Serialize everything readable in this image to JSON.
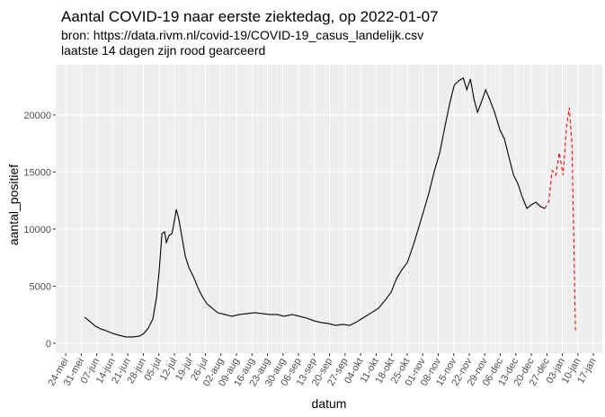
{
  "chart_data": {
    "type": "line",
    "title": "Aantal COVID-19 naar eerste ziektedag, op 2022-01-07",
    "subtitle": [
      "bron: https://data.rivm.nl/covid-19/COVID-19_casus_landelijk.csv",
      "laatste 14 dagen zijn rood gearceerd"
    ],
    "xlabel": "datum",
    "ylabel": "aantal_positief",
    "grid": true,
    "xlim": [
      -4.5,
      242
    ],
    "ylim": [
      -870,
      24400
    ],
    "yticks": [
      0,
      5000,
      10000,
      15000,
      20000
    ],
    "xticks": [
      {
        "value": 0,
        "label": "24-mei"
      },
      {
        "value": 7,
        "label": "31-mei"
      },
      {
        "value": 14,
        "label": "07-jun"
      },
      {
        "value": 21,
        "label": "14-jun"
      },
      {
        "value": 28,
        "label": "21-jun"
      },
      {
        "value": 35,
        "label": "28-jun"
      },
      {
        "value": 42,
        "label": "05-jul"
      },
      {
        "value": 49,
        "label": "12-jul"
      },
      {
        "value": 56,
        "label": "19-jul"
      },
      {
        "value": 63,
        "label": "26-jul"
      },
      {
        "value": 70,
        "label": "02-aug"
      },
      {
        "value": 77,
        "label": "09-aug"
      },
      {
        "value": 84,
        "label": "16-aug"
      },
      {
        "value": 91,
        "label": "23-aug"
      },
      {
        "value": 98,
        "label": "30-aug"
      },
      {
        "value": 105,
        "label": "06-sep"
      },
      {
        "value": 112,
        "label": "13-sep"
      },
      {
        "value": 119,
        "label": "20-sep"
      },
      {
        "value": 126,
        "label": "27-sep"
      },
      {
        "value": 133,
        "label": "04-okt"
      },
      {
        "value": 140,
        "label": "11-okt"
      },
      {
        "value": 147,
        "label": "18-okt"
      },
      {
        "value": 154,
        "label": "25-okt"
      },
      {
        "value": 161,
        "label": "01-nov"
      },
      {
        "value": 168,
        "label": "08-nov"
      },
      {
        "value": 175,
        "label": "15-nov"
      },
      {
        "value": 182,
        "label": "22-nov"
      },
      {
        "value": 189,
        "label": "29-nov"
      },
      {
        "value": 196,
        "label": "06-dec"
      },
      {
        "value": 203,
        "label": "13-dec"
      },
      {
        "value": 210,
        "label": "20-dec"
      },
      {
        "value": 217,
        "label": "27-dec"
      },
      {
        "value": 224,
        "label": "03-jan"
      },
      {
        "value": 231,
        "label": "10-jan"
      },
      {
        "value": 238,
        "label": "17-jan"
      }
    ],
    "series": [
      {
        "color": "#000000",
        "linestyle": "solid",
        "x": [
          8.5,
          11,
          13.4,
          15.8,
          18.2,
          21.1,
          23.9,
          27.2,
          30.4,
          33.3,
          35.3,
          37.3,
          39.3,
          41,
          42.2,
          43.4,
          44.6,
          45.4,
          46.6,
          47.9,
          48.7,
          49.9,
          51.1,
          52.3,
          53.9,
          55.6,
          57.6,
          59.6,
          61.6,
          63.7,
          66.1,
          68.5,
          71.8,
          75,
          78.3,
          81.9,
          85.2,
          88.8,
          92,
          95.3,
          98.5,
          102.2,
          105.4,
          108.7,
          111.9,
          115.2,
          118.4,
          121.7,
          124.9,
          128.1,
          131.4,
          134.6,
          137.9,
          141.1,
          144.4,
          146.8,
          149.2,
          151.7,
          154.1,
          156.5,
          159,
          161.4,
          163.8,
          166.3,
          168.7,
          171.1,
          173.2,
          175.2,
          177.2,
          179.3,
          180.9,
          182.5,
          184.1,
          185.7,
          187.3,
          189.4,
          191.4,
          193.4,
          195.9,
          197.9,
          199.9,
          202,
          204,
          206,
          208,
          210,
          212.1,
          214.1,
          216.1
        ],
        "values": [
          2280,
          1890,
          1500,
          1260,
          1100,
          870,
          710,
          550,
          550,
          630,
          870,
          1340,
          2130,
          4090,
          6460,
          9600,
          9760,
          8820,
          9450,
          9600,
          10390,
          11730,
          10790,
          9450,
          7640,
          6610,
          5830,
          4880,
          4090,
          3460,
          3070,
          2680,
          2520,
          2360,
          2520,
          2600,
          2680,
          2600,
          2520,
          2520,
          2360,
          2520,
          2360,
          2200,
          1970,
          1810,
          1730,
          1570,
          1650,
          1570,
          1890,
          2280,
          2680,
          3070,
          3860,
          4490,
          5670,
          6460,
          7090,
          8430,
          10000,
          11570,
          13150,
          15120,
          16690,
          19060,
          21020,
          22600,
          22990,
          23230,
          22200,
          23150,
          21420,
          20240,
          21020,
          22200,
          21260,
          20240,
          18660,
          17870,
          16300,
          14720,
          13940,
          12760,
          11810,
          12130,
          12360,
          11970,
          11810
        ]
      },
      {
        "color": "#ff0000",
        "linestyle": "dashed",
        "x": [
          216.1,
          217.8,
          219.4,
          221,
          222.6,
          224.3,
          225.9,
          227.1,
          228.3,
          229.1,
          229.9
        ],
        "values": [
          11810,
          12360,
          15120,
          14720,
          16690,
          14720,
          19060,
          20630,
          17480,
          9600,
          940
        ]
      }
    ]
  }
}
